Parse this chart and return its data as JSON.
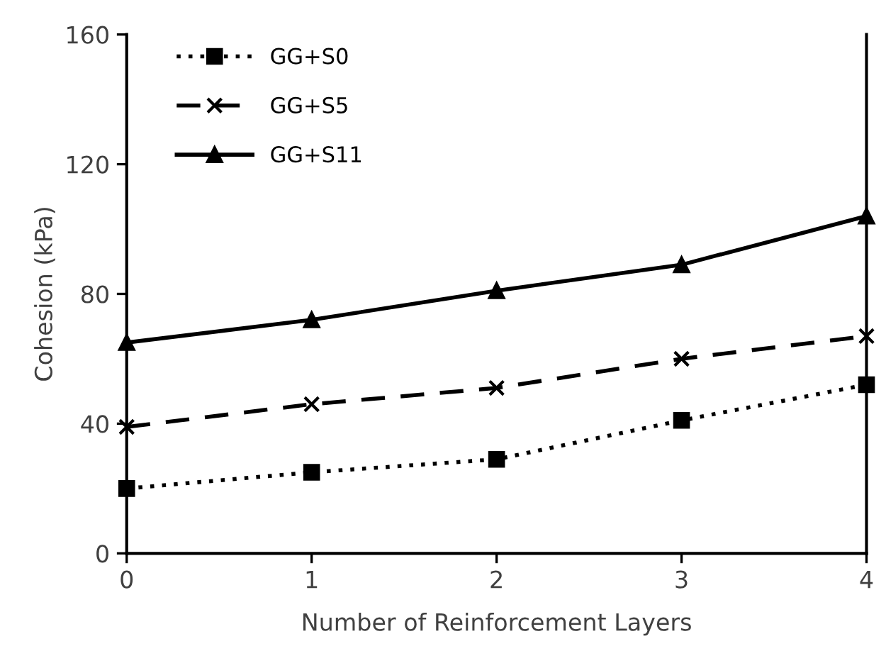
{
  "chart_data": {
    "type": "line",
    "xlabel": "Number of Reinforcement Layers",
    "ylabel": "Cohesion (kPa)",
    "x": [
      0,
      1,
      2,
      3,
      4
    ],
    "series": [
      {
        "name": "GG+S0",
        "color": "#000000",
        "values": [
          20,
          25,
          29,
          41,
          52
        ],
        "marker": "square",
        "line_style": "dotted"
      },
      {
        "name": "GG+S5",
        "color": "#000000",
        "values": [
          39,
          46,
          51,
          60,
          67
        ],
        "marker": "cross",
        "line_style": "dashed"
      },
      {
        "name": "GG+S11",
        "color": "#000000",
        "values": [
          65,
          72,
          81,
          89,
          104
        ],
        "marker": "triangle",
        "line_style": "solid"
      }
    ],
    "xlim": [
      0,
      4
    ],
    "xticks": [
      0,
      1,
      2,
      3,
      4
    ],
    "ylim": [
      0,
      160
    ],
    "yticks": [
      0,
      40,
      80,
      120,
      160
    ],
    "grid": false,
    "legend": "top left"
  }
}
